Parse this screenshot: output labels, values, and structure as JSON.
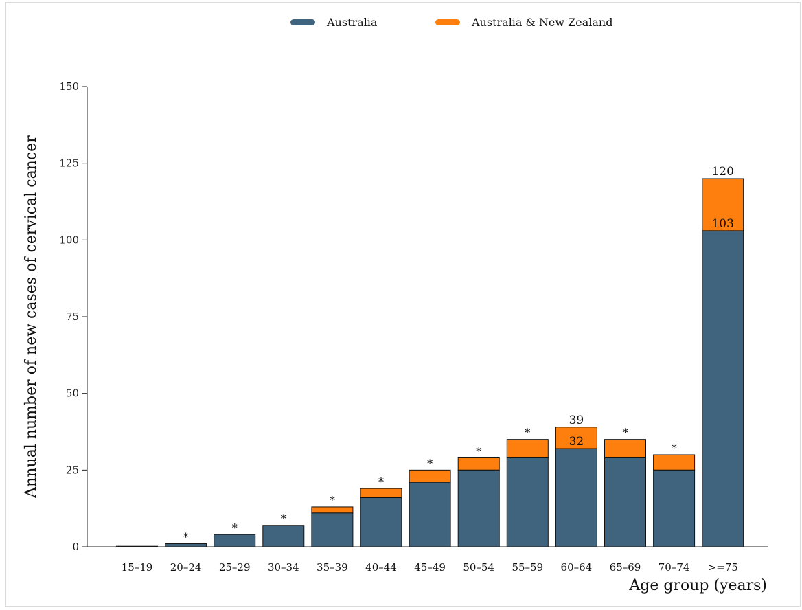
{
  "chart_data": {
    "type": "bar",
    "stacked": true,
    "xlabel": "Age group (years)",
    "ylabel": "Annual number of new cases of cervical cancer",
    "ylim": [
      0,
      150
    ],
    "yticks": [
      0,
      25,
      50,
      75,
      100,
      125,
      150
    ],
    "categories": [
      "15–19",
      "20–24",
      "25–29",
      "30–34",
      "35–39",
      "40–44",
      "45–49",
      "50–54",
      "55–59",
      "60–64",
      "65–69",
      "70–74",
      ">=75"
    ],
    "series": [
      {
        "name": "Australia",
        "color": "#41647e",
        "values": [
          0,
          1,
          4,
          7,
          11,
          16,
          21,
          25,
          29,
          32,
          29,
          25,
          103
        ]
      },
      {
        "name": "Australia & New Zealand",
        "color": "#ff7f0e",
        "totals": [
          0,
          1,
          4,
          7,
          13,
          19,
          25,
          29,
          35,
          39,
          35,
          30,
          120
        ]
      }
    ],
    "annotations": [
      {
        "category": "20–24",
        "text": "*"
      },
      {
        "category": "25–29",
        "text": "*"
      },
      {
        "category": "30–34",
        "text": "*"
      },
      {
        "category": "35–39",
        "text": "*"
      },
      {
        "category": "40–44",
        "text": "*"
      },
      {
        "category": "45–49",
        "text": "*"
      },
      {
        "category": "50–54",
        "text": "*"
      },
      {
        "category": "55–59",
        "text": "*"
      },
      {
        "category": "65–69",
        "text": "*"
      },
      {
        "category": "70–74",
        "text": "*"
      }
    ],
    "value_labels": [
      {
        "category": "60–64",
        "inner": "32",
        "top": "39"
      },
      {
        "category": ">=75",
        "inner": "103",
        "top": "120"
      }
    ],
    "legend_position": "top-center",
    "grid": false
  }
}
